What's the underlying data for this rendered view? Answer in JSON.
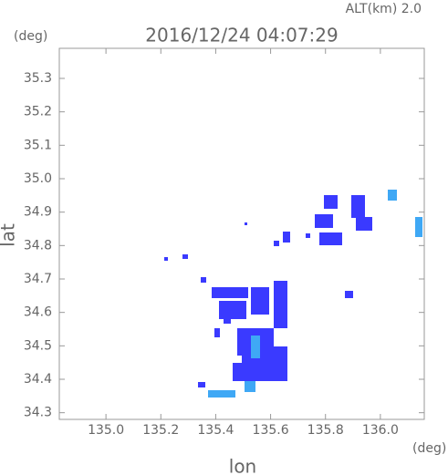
{
  "chart_data": {
    "type": "radar-map",
    "title": "2016/12/24 04:07:29",
    "altitude_label": "ALT(km) 2.0",
    "x_label": "lon",
    "y_label": "lat",
    "x_unit": "(deg)",
    "y_unit": "(deg)",
    "xlim": [
      134.83,
      136.16
    ],
    "ylim": [
      34.28,
      35.39
    ],
    "xticks": [
      {
        "value": 135.0,
        "label": "135.0"
      },
      135.2,
      135.4,
      135.6,
      135.8,
      {
        "value": 136.0,
        "label": "136.0"
      }
    ],
    "yticks": [
      34.3,
      34.4,
      34.5,
      34.6,
      34.7,
      34.8,
      34.9,
      {
        "value": 35.0,
        "label": "35.0"
      },
      35.1,
      35.2,
      35.3
    ]
  }
}
